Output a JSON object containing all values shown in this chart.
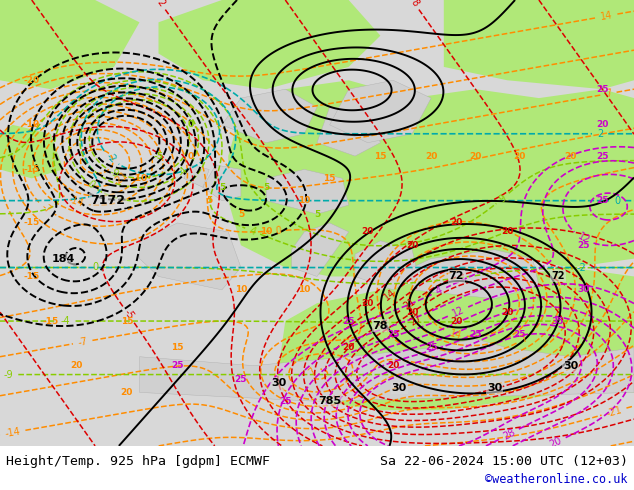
{
  "title_left": "Height/Temp. 925 hPa [gdpm] ECMWF",
  "title_right": "Sa 22-06-2024 15:00 UTC (12+03)",
  "watermark": "©weatheronline.co.uk",
  "watermark_color": "#0000cc",
  "bg_color": "#ffffff",
  "land_color": "#d8d8d8",
  "green_color": "#b0e878",
  "figsize": [
    6.34,
    4.9
  ],
  "dpi": 100,
  "text_color": "#000000",
  "title_fontsize": 9.5,
  "watermark_fontsize": 8.5,
  "black_line_color": "#000000",
  "orange_color": "#FF8C00",
  "red_color": "#dd0000",
  "magenta_color": "#cc00cc",
  "green_line_color": "#88cc00",
  "cyan_color": "#00aaaa"
}
